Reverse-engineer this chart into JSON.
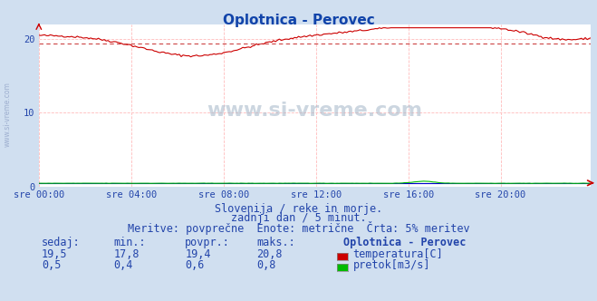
{
  "title": "Oplotnica - Perovec",
  "title_color": "#1144aa",
  "title_fontsize": 11,
  "bg_color": "#d0dff0",
  "plot_bg_color": "#ffffff",
  "grid_color": "#ffbbbb",
  "grid_color_v": "#ffbbbb",
  "x_ticks_labels": [
    "sre 00:00",
    "sre 04:00",
    "sre 08:00",
    "sre 12:00",
    "sre 16:00",
    "sre 20:00"
  ],
  "x_ticks_pos": [
    0,
    48,
    96,
    144,
    192,
    240
  ],
  "y_ticks": [
    0,
    10,
    20
  ],
  "ylim": [
    0,
    22
  ],
  "xlim": [
    0,
    287
  ],
  "total_points": 288,
  "temp_color": "#cc0000",
  "flow_color": "#00bb00",
  "blue_line_color": "#0000cc",
  "avg_line_color": "#cc4444",
  "avg_value": 19.4,
  "watermark_text": "www.si-vreme.com",
  "watermark_color": "#aabbcc",
  "watermark_alpha": 0.6,
  "subtitle1": "Slovenija / reke in morje.",
  "subtitle2": "zadnji dan / 5 minut.",
  "subtitle3": "Meritve: povprečne  Enote: metrične  Črta: 5% meritev",
  "subtitle_color": "#2244aa",
  "subtitle_fontsize": 8.5,
  "table_header": [
    "sedaj:",
    "min.:",
    "povpr.:",
    "maks.:",
    "Oplotnica - Perovec"
  ],
  "table_row1": [
    "19,5",
    "17,8",
    "19,4",
    "20,8"
  ],
  "table_row2": [
    "0,5",
    "0,4",
    "0,6",
    "0,8"
  ],
  "table_color": "#2244aa",
  "table_fontsize": 8.5,
  "legend_temp": "temperatura[C]",
  "legend_flow": "pretok[m3/s]",
  "temp_color_legend": "#cc0000",
  "flow_color_legend": "#00bb00",
  "right_arrow_color": "#cc0000",
  "left_axis_label": "www.si-vreme.com",
  "left_label_color": "#99aacc"
}
